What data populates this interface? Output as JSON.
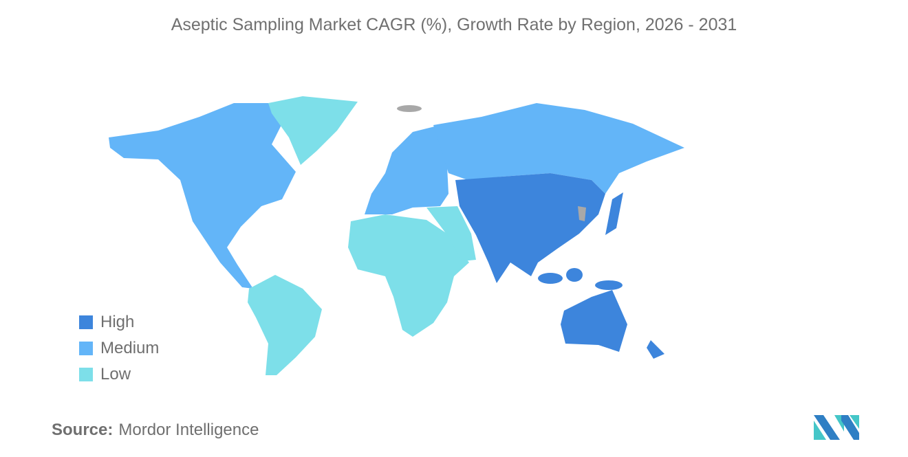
{
  "title": "Aseptic Sampling Market CAGR (%), Growth Rate by Region, 2026 - 2031",
  "legend": [
    {
      "label": "High",
      "color": "#3d85dc"
    },
    {
      "label": "Medium",
      "color": "#63b5f8"
    },
    {
      "label": "Low",
      "color": "#7ddfe9"
    }
  ],
  "regions": {
    "north_america": "Medium",
    "europe": "Medium",
    "russia": "Medium",
    "greenland": "Low",
    "south_america": "Low",
    "africa": "Low",
    "middle_east": "Low",
    "asia_pacific": "High"
  },
  "no_data_color": "#a8a8a8",
  "source": {
    "label": "Source:",
    "value": "Mordor Intelligence"
  }
}
